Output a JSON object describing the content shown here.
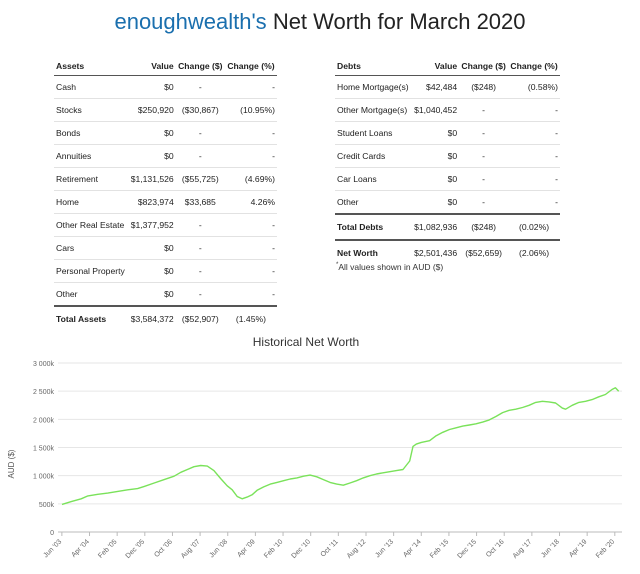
{
  "page": {
    "title_brand": "enoughwealth's",
    "title_rest": "Net Worth for March 2020"
  },
  "assets": {
    "header": [
      "Assets",
      "Value",
      "Change ($)",
      "Change (%)"
    ],
    "rows": [
      [
        "Cash",
        "$0",
        "-",
        "-"
      ],
      [
        "Stocks",
        "$250,920",
        "($30,867)",
        "(10.95%)"
      ],
      [
        "Bonds",
        "$0",
        "-",
        "-"
      ],
      [
        "Annuities",
        "$0",
        "-",
        "-"
      ],
      [
        "Retirement",
        "$1,131,526",
        "($55,725)",
        "(4.69%)"
      ],
      [
        "Home",
        "$823,974",
        "$33,685",
        "4.26%"
      ],
      [
        "Other Real Estate",
        "$1,377,952",
        "-",
        "-"
      ],
      [
        "Cars",
        "$0",
        "-",
        "-"
      ],
      [
        "Personal Property",
        "$0",
        "-",
        "-"
      ],
      [
        "Other",
        "$0",
        "-",
        "-"
      ]
    ],
    "total": [
      "Total Assets",
      "$3,584,372",
      "($52,907)",
      "(1.45%)"
    ]
  },
  "debts": {
    "header": [
      "Debts",
      "Value",
      "Change ($)",
      "Change (%)"
    ],
    "rows": [
      [
        "Home Mortgage(s)",
        "$42,484",
        "($248)",
        "(0.58%)"
      ],
      [
        "Other Mortgage(s)",
        "$1,040,452",
        "-",
        "-"
      ],
      [
        "Student Loans",
        "$0",
        "-",
        "-"
      ],
      [
        "Credit Cards",
        "$0",
        "-",
        "-"
      ],
      [
        "Car Loans",
        "$0",
        "-",
        "-"
      ],
      [
        "Other",
        "$0",
        "-",
        "-"
      ]
    ],
    "total": [
      "Total Debts",
      "$1,082,936",
      "($248)",
      "(0.02%)"
    ],
    "networth": [
      "Net Worth",
      "$2,501,436",
      "($52,659)",
      "(2.06%)"
    ],
    "note_mark": "*",
    "note": "All values shown in AUD ($)"
  },
  "chart_data": {
    "type": "line",
    "title": "Historical Net Worth",
    "xlabel": "",
    "ylabel": "AUD ($)",
    "ylim": [
      0,
      3000
    ],
    "yticks": [
      0,
      500,
      1000,
      1500,
      2000,
      2500,
      3000
    ],
    "yticklabels": [
      "0",
      "500k",
      "1 000k",
      "1 500k",
      "2 000k",
      "2 500k",
      "3 000k"
    ],
    "xlim": [
      2003.3,
      2020.3
    ],
    "xticks": [
      2003.4167,
      2004.25,
      2005.0833,
      2005.9167,
      2006.75,
      2007.5833,
      2008.4167,
      2009.25,
      2010.0833,
      2010.9167,
      2011.75,
      2012.5833,
      2013.4167,
      2014.25,
      2015.0833,
      2015.9167,
      2016.75,
      2017.5833,
      2018.4167,
      2019.25,
      2020.0833
    ],
    "xticklabels": [
      "Jun '03",
      "Apr '04",
      "Feb '05",
      "Dec '05",
      "Oct '06",
      "Aug '07",
      "Jun '08",
      "Apr '09",
      "Feb '10",
      "Dec '10",
      "Oct '11",
      "Aug '12",
      "Jun '13",
      "Apr '14",
      "Feb '15",
      "Dec '15",
      "Oct '16",
      "Aug '17",
      "Jun '18",
      "Apr '19",
      "Feb '20"
    ],
    "grid": true,
    "legend": "none",
    "color": "#7ae25a",
    "series": [
      {
        "x": [
          2003.42,
          2003.7,
          2004.0,
          2004.2,
          2004.5,
          2004.8,
          2005.1,
          2005.4,
          2005.7,
          2005.9,
          2006.2,
          2006.5,
          2006.8,
          2007.0,
          2007.2,
          2007.4,
          2007.6,
          2007.8,
          2008.0,
          2008.2,
          2008.4,
          2008.55,
          2008.7,
          2008.85,
          2009.0,
          2009.15,
          2009.3,
          2009.5,
          2009.7,
          2009.9,
          2010.1,
          2010.3,
          2010.5,
          2010.7,
          2010.9,
          2011.1,
          2011.3,
          2011.5,
          2011.7,
          2011.9,
          2012.1,
          2012.3,
          2012.5,
          2012.7,
          2012.9,
          2013.1,
          2013.3,
          2013.5,
          2013.7,
          2013.9,
          2014.0,
          2014.1,
          2014.25,
          2014.5,
          2014.7,
          2014.9,
          2015.1,
          2015.3,
          2015.5,
          2015.7,
          2015.9,
          2016.1,
          2016.3,
          2016.5,
          2016.7,
          2016.9,
          2017.1,
          2017.3,
          2017.5,
          2017.7,
          2017.9,
          2018.1,
          2018.3,
          2018.5,
          2018.6,
          2018.8,
          2019.0,
          2019.2,
          2019.4,
          2019.6,
          2019.8,
          2020.0,
          2020.1,
          2020.2
        ],
        "y": [
          490,
          540,
          590,
          640,
          670,
          690,
          720,
          750,
          770,
          810,
          870,
          930,
          990,
          1060,
          1110,
          1160,
          1180,
          1170,
          1090,
          950,
          820,
          750,
          630,
          590,
          620,
          660,
          740,
          800,
          850,
          880,
          910,
          940,
          960,
          990,
          1010,
          980,
          930,
          880,
          850,
          830,
          870,
          910,
          960,
          1000,
          1030,
          1050,
          1070,
          1090,
          1110,
          1260,
          1520,
          1560,
          1590,
          1620,
          1710,
          1770,
          1820,
          1850,
          1880,
          1900,
          1920,
          1950,
          1990,
          2050,
          2120,
          2160,
          2180,
          2210,
          2250,
          2300,
          2320,
          2310,
          2290,
          2200,
          2180,
          2250,
          2300,
          2320,
          2350,
          2400,
          2440,
          2530,
          2560,
          2500
        ]
      }
    ]
  }
}
